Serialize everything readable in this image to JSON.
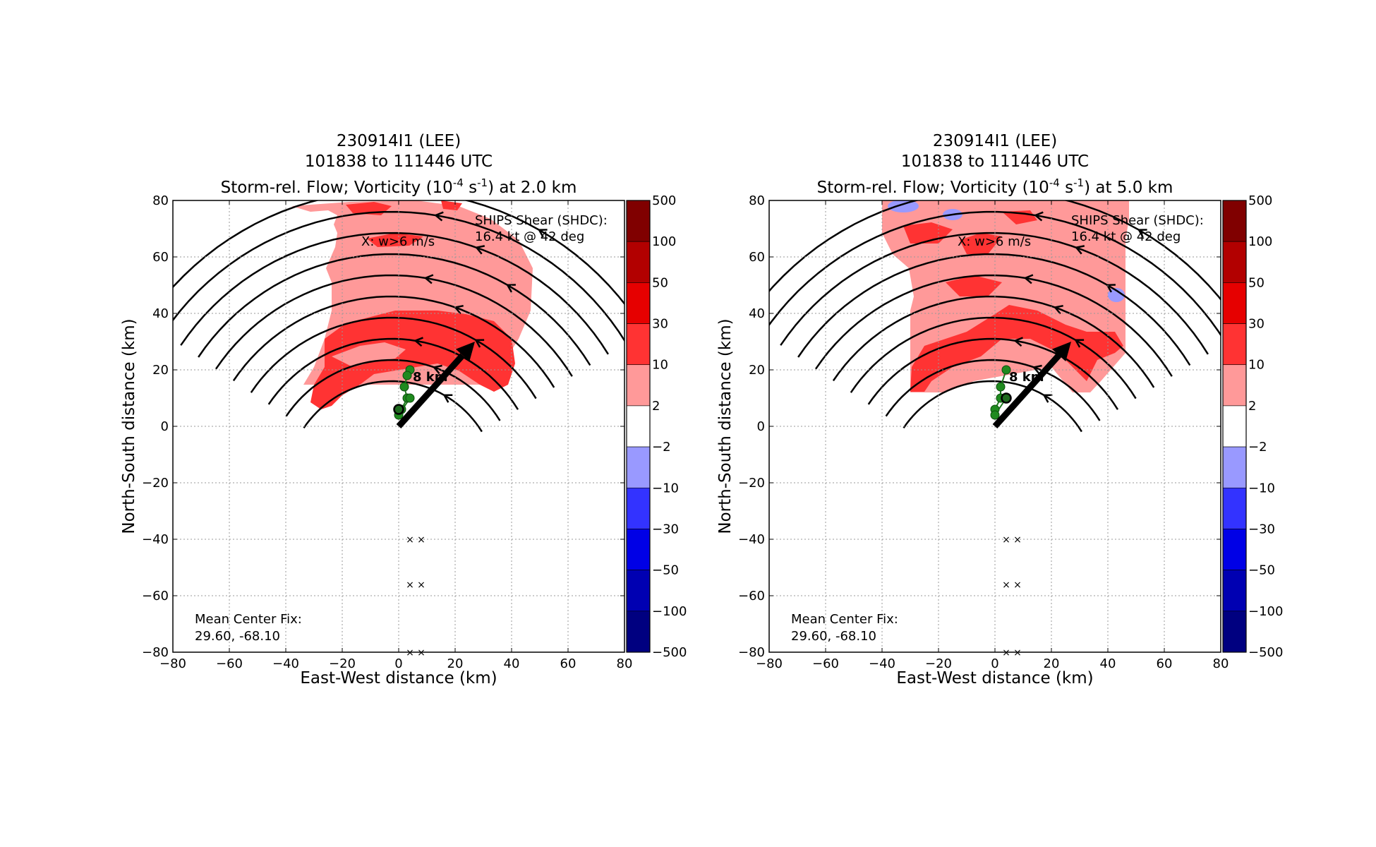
{
  "chart_data": [
    {
      "type": "heatmap",
      "title_lines": [
        "230914I1 (LEE)",
        "101838 to 111446 UTC"
      ],
      "title_line3": {
        "prefix": "Storm-rel. Flow; Vorticity (10",
        "exp1": "-4",
        "mid": " s",
        "exp2": "-1",
        "suffix": ") at 2.0 km"
      },
      "xlabel": "East-West distance (km)",
      "ylabel": "North-South distance (km)",
      "xlim": [
        -80,
        80
      ],
      "ylim": [
        -80,
        80
      ],
      "xticks": [
        "−80",
        "−60",
        "−40",
        "−20",
        "0",
        "20",
        "40",
        "60",
        "80"
      ],
      "yticks": [
        "80",
        "60",
        "40",
        "20",
        "0",
        "−20",
        "−40",
        "−60",
        "−80"
      ],
      "grid": true,
      "annotations": {
        "ships_line1": "SHIPS Shear (SHDC):",
        "ships_line2": "16.4 kt @ 42 deg",
        "w_label": "X: w>6 m/s",
        "scale_label": "8 km",
        "center_line1": "Mean Center Fix:",
        "center_line2": "29.60, -68.10"
      },
      "shear_vector": {
        "from": [
          0,
          0
        ],
        "to": [
          27,
          30
        ]
      },
      "center_track": [
        [
          4,
          20
        ],
        [
          3,
          18
        ],
        [
          2,
          14
        ],
        [
          3,
          10
        ],
        [
          1,
          6
        ],
        [
          0,
          4
        ],
        [
          4,
          10
        ]
      ],
      "mean_center": [
        0,
        6
      ],
      "updraft_x_marks": [
        [
          4,
          -40
        ],
        [
          8,
          -40
        ],
        [
          4,
          -56
        ],
        [
          8,
          -56
        ],
        [
          4,
          -80
        ],
        [
          8,
          -80
        ]
      ],
      "colorbar": {
        "labels": [
          "500",
          "100",
          "50",
          "30",
          "10",
          "2",
          "−2",
          "−10",
          "−30",
          "−50",
          "−100",
          "−500"
        ],
        "colors": [
          "#800000",
          "#b20000",
          "#e60000",
          "#ff3333",
          "#ff9999",
          "#ffffff",
          "#9999ff",
          "#3333ff",
          "#0000e6",
          "#0000b2",
          "#000080"
        ]
      }
    },
    {
      "type": "heatmap",
      "title_lines": [
        "230914I1 (LEE)",
        "101838 to 111446 UTC"
      ],
      "title_line3": {
        "prefix": "Storm-rel. Flow; Vorticity (10",
        "exp1": "-4",
        "mid": " s",
        "exp2": "-1",
        "suffix": ") at 5.0 km"
      },
      "xlabel": "East-West distance (km)",
      "ylabel": "North-South distance (km)",
      "xlim": [
        -80,
        80
      ],
      "ylim": [
        -80,
        80
      ],
      "xticks": [
        "−80",
        "−60",
        "−40",
        "−20",
        "0",
        "20",
        "40",
        "60",
        "80"
      ],
      "yticks": [
        "80",
        "60",
        "40",
        "20",
        "0",
        "−20",
        "−40",
        "−60",
        "−80"
      ],
      "grid": true,
      "annotations": {
        "ships_line1": "SHIPS Shear (SHDC):",
        "ships_line2": "16.4 kt @ 42 deg",
        "w_label": "X: w>6 m/s",
        "scale_label": "8 km",
        "center_line1": "Mean Center Fix:",
        "center_line2": "29.60, -68.10"
      },
      "shear_vector": {
        "from": [
          0,
          0
        ],
        "to": [
          27,
          30
        ]
      },
      "center_track": [
        [
          4,
          20
        ],
        [
          2,
          14
        ],
        [
          2,
          10
        ],
        [
          0,
          6
        ],
        [
          0,
          4
        ],
        [
          4,
          10
        ]
      ],
      "mean_center": [
        4,
        10
      ],
      "updraft_x_marks": [
        [
          4,
          -40
        ],
        [
          8,
          -40
        ],
        [
          4,
          -56
        ],
        [
          8,
          -56
        ],
        [
          4,
          -80
        ],
        [
          8,
          -80
        ]
      ],
      "colorbar": {
        "labels": [
          "500",
          "100",
          "50",
          "30",
          "10",
          "2",
          "−2",
          "−10",
          "−30",
          "−50",
          "−100",
          "−500"
        ],
        "colors": [
          "#800000",
          "#b20000",
          "#e60000",
          "#ff3333",
          "#ff9999",
          "#ffffff",
          "#9999ff",
          "#3333ff",
          "#0000e6",
          "#0000b2",
          "#000080"
        ]
      }
    }
  ]
}
